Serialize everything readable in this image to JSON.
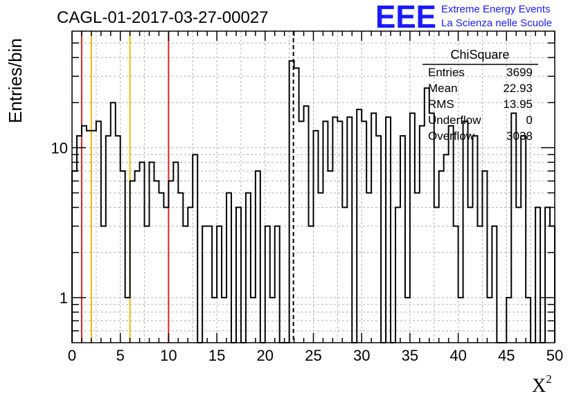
{
  "chart_data": {
    "type": "histogram",
    "title": "CAGL-01-2017-03-27-00027",
    "xlabel": "X",
    "xlabel_superscript": "2",
    "ylabel": "Entries/bin",
    "x_scale": "linear",
    "y_scale": "log",
    "xlim": [
      0,
      50
    ],
    "ylim": [
      0.5,
      60
    ],
    "x_ticks": [
      "0",
      "5",
      "10",
      "15",
      "20",
      "25",
      "30",
      "35",
      "40",
      "45",
      "50"
    ],
    "y_ticks": [
      {
        "value": 1,
        "label": "1"
      },
      {
        "value": 10,
        "label": "10"
      }
    ],
    "grid": true,
    "bin_width": 0.5,
    "counts": [
      7,
      12,
      14,
      13,
      13,
      15,
      3,
      12,
      20,
      12,
      7,
      1,
      6,
      7,
      8,
      3,
      8,
      6,
      5,
      4,
      6,
      8,
      5,
      3,
      4,
      9,
      0,
      3,
      3,
      1,
      3,
      1,
      5,
      0,
      4,
      0,
      5,
      1,
      7,
      0,
      3,
      1,
      3,
      0,
      0,
      38,
      34,
      15,
      19,
      3,
      13,
      5,
      15,
      7,
      16,
      15,
      4,
      16,
      0,
      18,
      15,
      5,
      17,
      12,
      0,
      16,
      0,
      4,
      12,
      1,
      17,
      5,
      14,
      25,
      17,
      4,
      7,
      9,
      14,
      3,
      1,
      15,
      4,
      12,
      3,
      7,
      1,
      3,
      0,
      0,
      1,
      17,
      4,
      12,
      1,
      0,
      4,
      0,
      4,
      3
    ],
    "vertical_lines": [
      {
        "x": 1,
        "color": "#dd2222",
        "style": "solid"
      },
      {
        "x": 2,
        "color": "#eebb00",
        "style": "solid"
      },
      {
        "x": 6,
        "color": "#eebb00",
        "style": "solid"
      },
      {
        "x": 10,
        "color": "#dd2222",
        "style": "solid"
      },
      {
        "x": 22.93,
        "color": "#000000",
        "style": "dashed"
      }
    ],
    "stats_box": {
      "title": "ChiSquare",
      "rows": [
        {
          "label": "Entries",
          "value": "3699"
        },
        {
          "label": "Mean",
          "value": "22.93"
        },
        {
          "label": "RMS",
          "value": "13.95"
        },
        {
          "label": "Underflow",
          "value": "0"
        },
        {
          "label": "Overflow",
          "value": "3038"
        }
      ]
    }
  },
  "branding": {
    "logo_text": "EEE",
    "line1": "Extreme Energy Events",
    "line2": "La Scienza nelle Scuole"
  },
  "colors": {
    "histogram": "#000000",
    "logo": "#1a1aff",
    "grid": "#b0b0b0"
  }
}
